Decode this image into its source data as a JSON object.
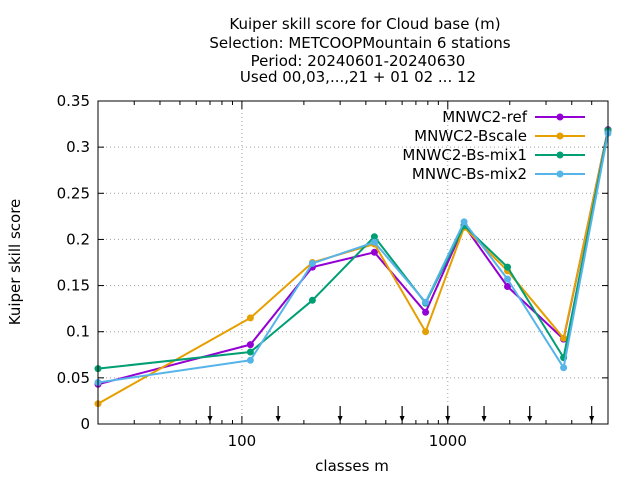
{
  "chart_data": {
    "type": "line",
    "title_lines": [
      "Kuiper skill score  for Cloud base (m)",
      "Selection: METCOOPMountain      6 stations",
      "Period: 20240601-20240630",
      "Used 00,03,...,21 + 01 02 ... 12"
    ],
    "xlabel": "classes m",
    "ylabel": "Kuiper skill score",
    "xscale": "log",
    "xlim": [
      20,
      6000
    ],
    "ylim": [
      0,
      0.35
    ],
    "yticks": [
      0,
      0.05,
      0.1,
      0.15,
      0.2,
      0.25,
      0.3,
      0.35
    ],
    "ytick_labels": [
      "0",
      "0.05",
      "0.1",
      "0.15",
      "0.2",
      "0.25",
      "0.3",
      "0.35"
    ],
    "xticks": [
      100,
      1000
    ],
    "xtick_labels": [
      "100",
      "1000"
    ],
    "grid": true,
    "legend_position": "top-right",
    "class_markers_x": [
      70,
      150,
      300,
      600,
      1000,
      1500,
      2500,
      5000
    ],
    "x": [
      20,
      110,
      220,
      440,
      780,
      1200,
      1950,
      3650,
      6000
    ],
    "series": [
      {
        "name": "MNWC2-ref",
        "color": "#9400d3",
        "values": [
          0.043,
          0.086,
          0.17,
          0.186,
          0.121,
          0.215,
          0.149,
          0.092,
          0.319
        ]
      },
      {
        "name": "MNWC2-Bscale",
        "color": "#e69f00",
        "values": [
          0.022,
          0.115,
          0.175,
          0.195,
          0.1,
          0.213,
          0.166,
          0.093,
          0.318
        ]
      },
      {
        "name": "MNWC2-Bs-mix1",
        "color": "#009e73",
        "values": [
          0.06,
          0.078,
          0.134,
          0.203,
          0.131,
          0.215,
          0.17,
          0.072,
          0.318
        ]
      },
      {
        "name": "MNWC-Bs-mix2",
        "color": "#56b4e9",
        "values": [
          0.045,
          0.069,
          0.174,
          0.197,
          0.132,
          0.219,
          0.157,
          0.061,
          0.315
        ]
      }
    ]
  }
}
